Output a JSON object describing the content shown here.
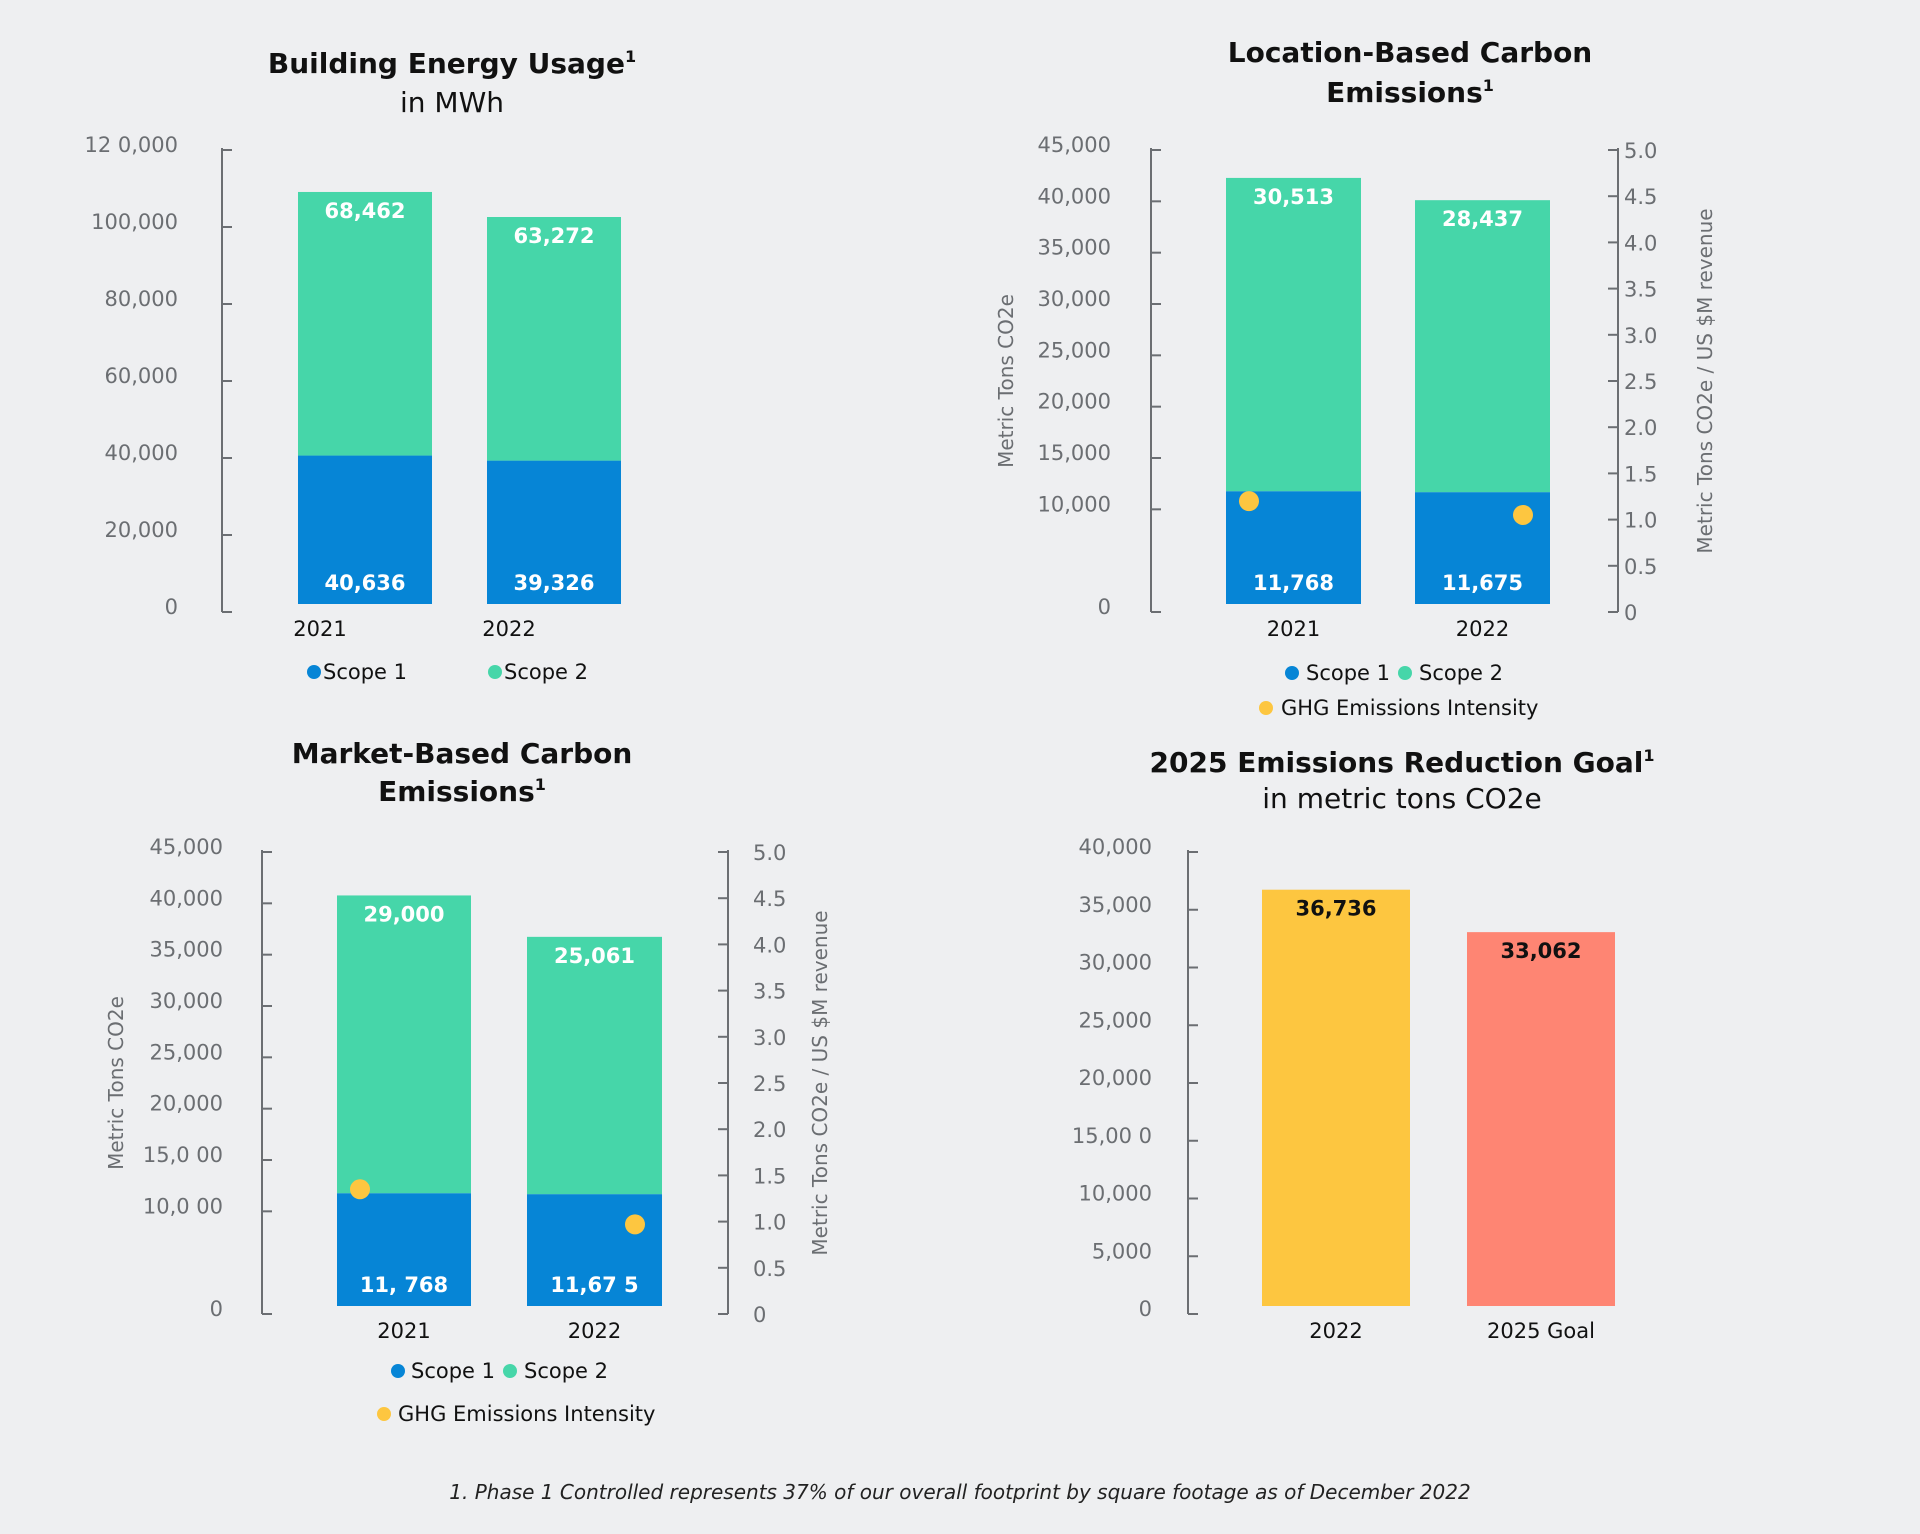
{
  "colors": {
    "scope1": "#0685d6",
    "scope2": "#46d6a9",
    "ghg": "#fdc640",
    "goal_2022": "#fdc640",
    "goal_2025": "#fe8573",
    "axis": "#6b6e72"
  },
  "footnote": "1. Phase 1 Controlled represents 37% of our overall footprint by square footage as of December 2022",
  "chart_data": [
    {
      "type": "bar",
      "stacked": true,
      "title": "Building Energy Usage",
      "title_sup": "1",
      "subtitle": "in MWh",
      "categories": [
        "2021",
        "2022"
      ],
      "yticks": [
        "0",
        "20,000",
        "40,000",
        "60,000",
        "80,000",
        "100,000",
        "12 0,000"
      ],
      "ylim": [
        0,
        120000
      ],
      "ylabel": "",
      "series": [
        {
          "name": "Scope 1",
          "values": [
            40636,
            39326
          ],
          "labels": [
            "40,636",
            "39,326"
          ]
        },
        {
          "name": "Scope 2",
          "values": [
            68462,
            63272
          ],
          "labels": [
            "68,462",
            "63,272"
          ]
        }
      ],
      "legend": [
        "Scope 1",
        "Scope 2"
      ]
    },
    {
      "type": "bar",
      "stacked": true,
      "title": "Location-Based  Carbon",
      "title2": "Emissions",
      "title_sup": "1",
      "categories": [
        "2021",
        "2022"
      ],
      "yticks": [
        "0",
        "10,000",
        "15,000",
        "20,000",
        "25,000",
        "30,000",
        "35,000",
        "40,000",
        "45,000"
      ],
      "ylim": [
        0,
        45000
      ],
      "ylabel": "Metric Tons CO2e",
      "y2ticks": [
        "0",
        "0.5",
        "1.0",
        "1.5",
        "2.0",
        "2.5",
        "3.0",
        "3.5",
        "4.0",
        "4.5",
        "5.0"
      ],
      "y2lim": [
        0,
        5
      ],
      "y2label": "Metric Tons CO2e / US $M revenue",
      "series": [
        {
          "name": "Scope 1",
          "values": [
            11768,
            11675
          ],
          "labels": [
            "11,768",
            "11,675"
          ]
        },
        {
          "name": "Scope 2",
          "values": [
            30513,
            28437
          ],
          "labels": [
            "30,513",
            "28,437"
          ]
        },
        {
          "name": "GHG Emissions Intensity",
          "axis": "y2",
          "values": [
            1.2,
            1.05
          ]
        }
      ],
      "legend": [
        "Scope 1",
        "Scope 2",
        "GHG Emissions Intensity"
      ]
    },
    {
      "type": "bar",
      "stacked": true,
      "title": "Market-Based Carbon",
      "title2": "Emissions",
      "title_sup": "1",
      "categories": [
        "2021",
        "2022"
      ],
      "yticks": [
        "0",
        "10,0 00",
        "15,0 00",
        "20,000",
        "25,000",
        "30,000",
        "35,000",
        "40,000",
        "45,000"
      ],
      "ylim": [
        0,
        45000
      ],
      "ylabel": "Metric Tons CO2e",
      "y2ticks": [
        "0",
        "0.5",
        "1.0",
        "1.5",
        "2.0",
        "2.5",
        "3.0",
        "3.5",
        "4.0",
        "4.5",
        "5.0"
      ],
      "y2lim": [
        0,
        5
      ],
      "y2label": "Metric Tons CO2e / US $M revenue",
      "series": [
        {
          "name": "Scope 1",
          "values": [
            11768,
            11675
          ],
          "labels": [
            "11, 768",
            "11,67  5"
          ]
        },
        {
          "name": "Scope 2",
          "values": [
            29000,
            25061
          ],
          "labels": [
            "29,000",
            "25,061"
          ]
        },
        {
          "name": "GHG Emissions Intensity",
          "axis": "y2",
          "values": [
            1.35,
            0.97
          ]
        }
      ],
      "legend": [
        "Scope 1",
        "Scope 2",
        "GHG Emissions Intensity"
      ]
    },
    {
      "type": "bar",
      "stacked": false,
      "title": "2025 Emissions Reduction Goal",
      "title_sup": "1",
      "subtitle": "in metric tons CO2e",
      "categories": [
        "2022",
        "2025 Goal"
      ],
      "yticks": [
        "0",
        "5,000",
        "10,000",
        "15,00 0",
        "20,000",
        "25,000",
        "30,000",
        "35,000",
        "40,000"
      ],
      "ylim": [
        0,
        40000
      ],
      "ylabel": "",
      "series": [
        {
          "name": "",
          "values": [
            36736,
            33062
          ],
          "labels": [
            "36,736",
            "33,062"
          ]
        }
      ]
    }
  ]
}
